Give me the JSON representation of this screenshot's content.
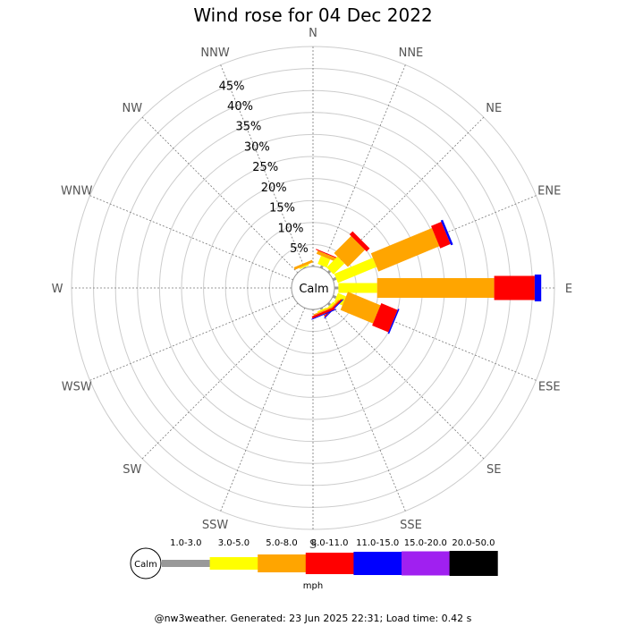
{
  "chart_data": {
    "type": "wind-rose",
    "title": "Wind rose for 04 Dec 2022",
    "directions": [
      "N",
      "NNE",
      "NE",
      "ENE",
      "E",
      "ESE",
      "SE",
      "SSE",
      "S",
      "SSW",
      "SW",
      "WSW",
      "W",
      "WNW",
      "NW",
      "NNW"
    ],
    "radial_ticks": [
      "5%",
      "10%",
      "15%",
      "20%",
      "25%",
      "30%",
      "35%",
      "40%",
      "45%"
    ],
    "radial_max_percent": 50,
    "calm_label": "Calm",
    "units": "mph",
    "speed_bins": [
      {
        "label": "1.0-3.0",
        "color": "#999999"
      },
      {
        "label": "3.0-5.0",
        "color": "#ffff00"
      },
      {
        "label": "5.0-8.0",
        "color": "#ffa500"
      },
      {
        "label": "8.0-11.0",
        "color": "#ff0000"
      },
      {
        "label": "11.0-15.0",
        "color": "#0000ff"
      },
      {
        "label": "15.0-20.0",
        "color": "#a020f0"
      },
      {
        "label": "20.0-50.0",
        "color": "#000000"
      }
    ],
    "series": [
      {
        "direction": "N",
        "values": [
          0.3,
          0,
          0,
          0,
          0,
          0,
          0
        ]
      },
      {
        "direction": "NNE",
        "values": [
          0.6,
          2.0,
          0.8,
          0.2,
          0,
          0,
          0
        ]
      },
      {
        "direction": "NE",
        "values": [
          0.6,
          3.5,
          5.5,
          1.0,
          0,
          0,
          0
        ]
      },
      {
        "direction": "ENE",
        "values": [
          0.8,
          9.5,
          15.0,
          2.5,
          0.5,
          0,
          0
        ]
      },
      {
        "direction": "E",
        "values": [
          0.9,
          8.8,
          26.6,
          9.2,
          1.5,
          0,
          0
        ]
      },
      {
        "direction": "ESE",
        "values": [
          0.8,
          2.0,
          8.0,
          4.0,
          0.3,
          0,
          0
        ]
      },
      {
        "direction": "SE",
        "values": [
          0.6,
          0.5,
          0.3,
          0.3,
          0.2,
          0,
          0
        ]
      },
      {
        "direction": "SSE",
        "values": [
          0.4,
          0.3,
          0.3,
          0.5,
          0.2,
          0,
          0
        ]
      },
      {
        "direction": "S",
        "values": [
          0.2,
          0,
          0,
          0,
          0,
          0,
          0
        ]
      },
      {
        "direction": "SSW",
        "values": [
          0,
          0,
          0,
          0,
          0,
          0,
          0
        ]
      },
      {
        "direction": "SW",
        "values": [
          0,
          0,
          0,
          0,
          0,
          0,
          0
        ]
      },
      {
        "direction": "WSW",
        "values": [
          0,
          0,
          0,
          0,
          0,
          0,
          0
        ]
      },
      {
        "direction": "W",
        "values": [
          0,
          0,
          0,
          0,
          0,
          0,
          0
        ]
      },
      {
        "direction": "WNW",
        "values": [
          0,
          0,
          0,
          0,
          0,
          0,
          0
        ]
      },
      {
        "direction": "NW",
        "values": [
          0,
          0,
          0,
          0,
          0,
          0,
          0
        ]
      },
      {
        "direction": "NNW",
        "values": [
          0.2,
          0.3,
          0.6,
          0,
          0,
          0,
          0
        ]
      }
    ],
    "grid": true
  },
  "footer": "@nw3weather. Generated: 23 Jun 2025 22:31; Load time: 0.42 s"
}
